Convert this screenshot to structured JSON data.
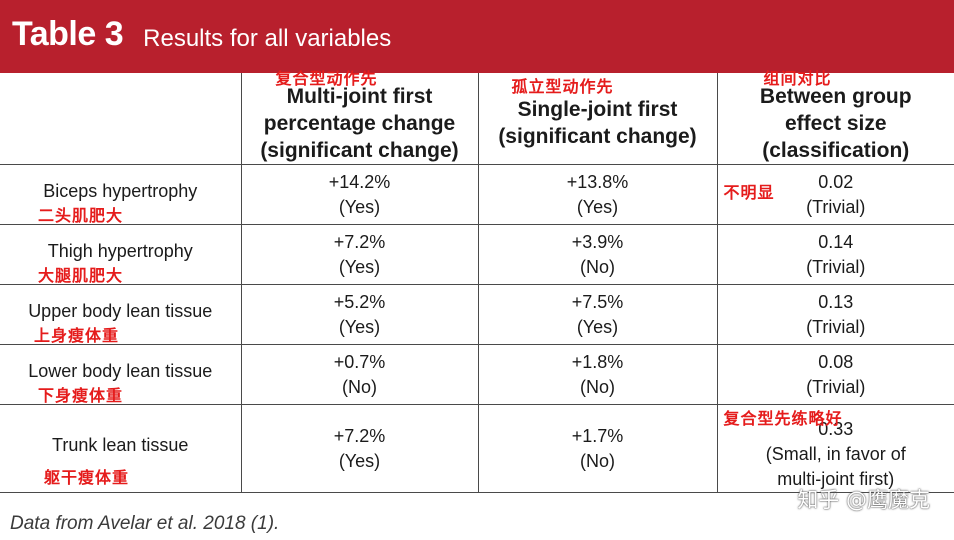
{
  "title": {
    "main": "Table 3",
    "sub": "Results for all variables"
  },
  "headers": [
    {
      "label": "",
      "annotation": ""
    },
    {
      "label": "Multi-joint first percentage change (significant change)",
      "annotation": "复合型动作先"
    },
    {
      "label": "Single-joint first (significant change)",
      "annotation": "孤立型动作先"
    },
    {
      "label": "Between group effect size (classification)",
      "annotation": "组间对比"
    }
  ],
  "rows": [
    {
      "variable": "Biceps hypertrophy",
      "annotation": "二头肌肥大",
      "multi_value": "+14.2%",
      "multi_sig": "(Yes)",
      "single_value": "+13.8%",
      "single_sig": "(Yes)",
      "effect_value": "0.02",
      "effect_class": "(Trivial)",
      "effect_annotation": "不明显"
    },
    {
      "variable": "Thigh hypertrophy",
      "annotation": "大腿肌肥大",
      "multi_value": "+7.2%",
      "multi_sig": "(Yes)",
      "single_value": "+3.9%",
      "single_sig": "(No)",
      "effect_value": "0.14",
      "effect_class": "(Trivial)",
      "effect_annotation": ""
    },
    {
      "variable": "Upper body lean tissue",
      "annotation": "上身瘦体重",
      "multi_value": "+5.2%",
      "multi_sig": "(Yes)",
      "single_value": "+7.5%",
      "single_sig": "(Yes)",
      "effect_value": "0.13",
      "effect_class": "(Trivial)",
      "effect_annotation": ""
    },
    {
      "variable": "Lower body lean tissue",
      "annotation": "下身瘦体重",
      "multi_value": "+0.7%",
      "multi_sig": "(No)",
      "single_value": "+1.8%",
      "single_sig": "(No)",
      "effect_value": "0.08",
      "effect_class": "(Trivial)",
      "effect_annotation": ""
    },
    {
      "variable": "Trunk lean tissue",
      "annotation": "躯干瘦体重",
      "multi_value": "+7.2%",
      "multi_sig": "(Yes)",
      "single_value": "+1.7%",
      "single_sig": "(No)",
      "effect_value": "0.33",
      "effect_class": "(Small, in favor of multi-joint first)",
      "effect_annotation": "复合型先练略好"
    }
  ],
  "caption": "Data from Avelar et al. 2018 (1).",
  "watermark": "知乎 @鹰魔克",
  "colors": {
    "title_bar": "#b8202d",
    "annotation": "#e51c1c"
  }
}
